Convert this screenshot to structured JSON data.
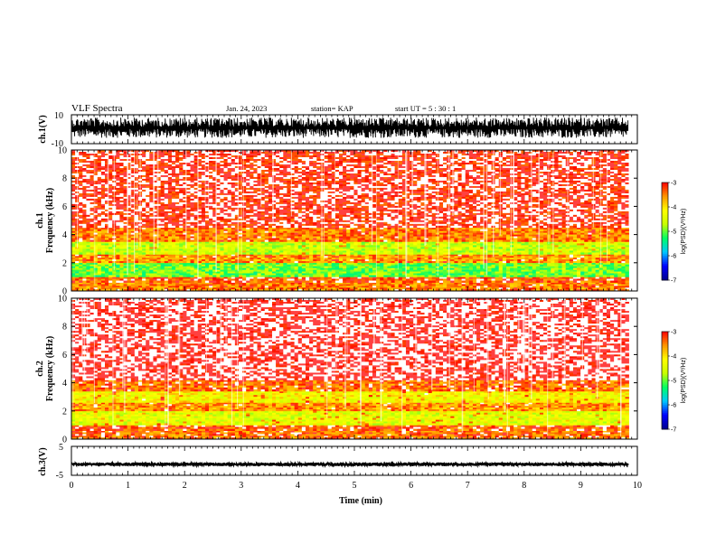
{
  "header": {
    "title": "VLF Spectra",
    "date": "Jan. 24, 2023",
    "station": "station= KAP",
    "start": "start  UT  =   5  : 30 : 1"
  },
  "chart_data": [
    {
      "type": "line",
      "name": "ch1-waveform",
      "ylabel": "ch.1(V)",
      "ylim": [
        -10,
        10
      ],
      "yticks": [
        "10",
        "-10"
      ],
      "xlim": [
        0,
        9.85
      ],
      "description_values": {
        "typical_min": -6,
        "typical_max": 8
      }
    },
    {
      "type": "heatmap",
      "name": "ch1-spectrogram",
      "title": "ch.1",
      "ylabel": "Frequency (kHz)",
      "ylim": [
        0,
        10
      ],
      "yticks": [
        "0",
        "2",
        "4",
        "6",
        "8",
        "10"
      ],
      "xlim": [
        0,
        9.85
      ],
      "bands": [
        {
          "from_khz": 0.0,
          "to_khz": 0.6,
          "level": -3.5
        },
        {
          "from_khz": 0.6,
          "to_khz": 1.0,
          "level": -3.3
        },
        {
          "from_khz": 1.0,
          "to_khz": 2.0,
          "level": -5.0
        },
        {
          "from_khz": 2.0,
          "to_khz": 2.6,
          "level": -3.6
        },
        {
          "from_khz": 2.6,
          "to_khz": 3.5,
          "level": -4.6
        },
        {
          "from_khz": 3.5,
          "to_khz": 4.5,
          "level": -3.5
        },
        {
          "from_khz": 4.5,
          "to_khz": 10.0,
          "level": -3.0
        }
      ]
    },
    {
      "type": "heatmap",
      "name": "ch2-spectrogram",
      "title": "ch.2",
      "ylabel": "Frequency (kHz)",
      "ylim": [
        0,
        10
      ],
      "yticks": [
        "0",
        "2",
        "4",
        "6",
        "8",
        "10"
      ],
      "xlim": [
        0,
        9.85
      ],
      "bands": [
        {
          "from_khz": 0.0,
          "to_khz": 0.6,
          "level": -3.4
        },
        {
          "from_khz": 0.6,
          "to_khz": 1.0,
          "level": -3.3
        },
        {
          "from_khz": 1.0,
          "to_khz": 2.0,
          "level": -4.4
        },
        {
          "from_khz": 2.0,
          "to_khz": 2.6,
          "level": -3.6
        },
        {
          "from_khz": 2.6,
          "to_khz": 3.4,
          "level": -4.2
        },
        {
          "from_khz": 3.4,
          "to_khz": 4.2,
          "level": -3.4
        },
        {
          "from_khz": 4.2,
          "to_khz": 10.0,
          "level": -2.8
        }
      ]
    },
    {
      "type": "line",
      "name": "ch3-waveform",
      "ylabel": "ch.3(V)",
      "ylim": [
        -5,
        5
      ],
      "yticks": [
        "5",
        "-5"
      ],
      "xlim": [
        0,
        9.85
      ],
      "description_values": {
        "typical_min": -1.8,
        "typical_max": -0.6
      }
    }
  ],
  "xaxis": {
    "label": "Time  (min)",
    "ticks": [
      "0",
      "1",
      "2",
      "3",
      "4",
      "5",
      "6",
      "7",
      "8",
      "9",
      "10"
    ],
    "range": [
      0,
      10
    ]
  },
  "colorbar": {
    "label": "log(PSD)(V²/Hz)",
    "ticks": [
      "-3",
      "-4",
      "-5",
      "-6",
      "-7"
    ],
    "range": [
      -7,
      -3
    ],
    "colors": [
      "#00008c",
      "#0000ff",
      "#00c8ff",
      "#00ff64",
      "#c8ff00",
      "#ffff00",
      "#ff9600",
      "#ff0000",
      "#ffffff"
    ]
  }
}
